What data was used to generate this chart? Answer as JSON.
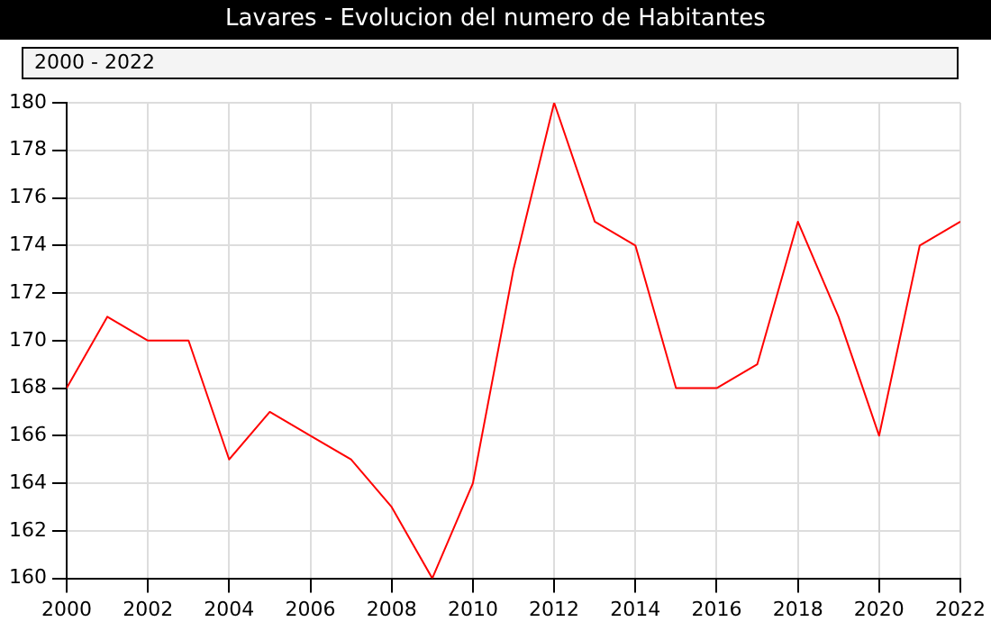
{
  "chart_data": {
    "type": "line",
    "title": "Lavares - Evolucion del numero de Habitantes",
    "subtitle": "2000 - 2022",
    "x": [
      2000,
      2001,
      2002,
      2003,
      2004,
      2005,
      2006,
      2007,
      2008,
      2009,
      2010,
      2011,
      2012,
      2013,
      2014,
      2015,
      2016,
      2017,
      2018,
      2019,
      2020,
      2021,
      2022
    ],
    "series": [
      {
        "color": "#ff0000",
        "values": [
          168,
          171,
          170,
          170,
          165,
          167,
          166,
          165,
          163,
          160,
          164,
          173,
          180,
          175,
          174,
          168,
          168,
          169,
          175,
          171,
          166,
          174,
          175
        ]
      }
    ],
    "xlim": [
      2000,
      2022
    ],
    "xticks": [
      2000,
      2002,
      2004,
      2006,
      2008,
      2010,
      2012,
      2014,
      2016,
      2018,
      2020,
      2022
    ],
    "ylim": [
      160,
      180
    ],
    "yticks": [
      160,
      162,
      164,
      166,
      168,
      170,
      172,
      174,
      176,
      178,
      180
    ],
    "grid": true,
    "legend": false,
    "marker": "none",
    "line_style": "solid"
  }
}
